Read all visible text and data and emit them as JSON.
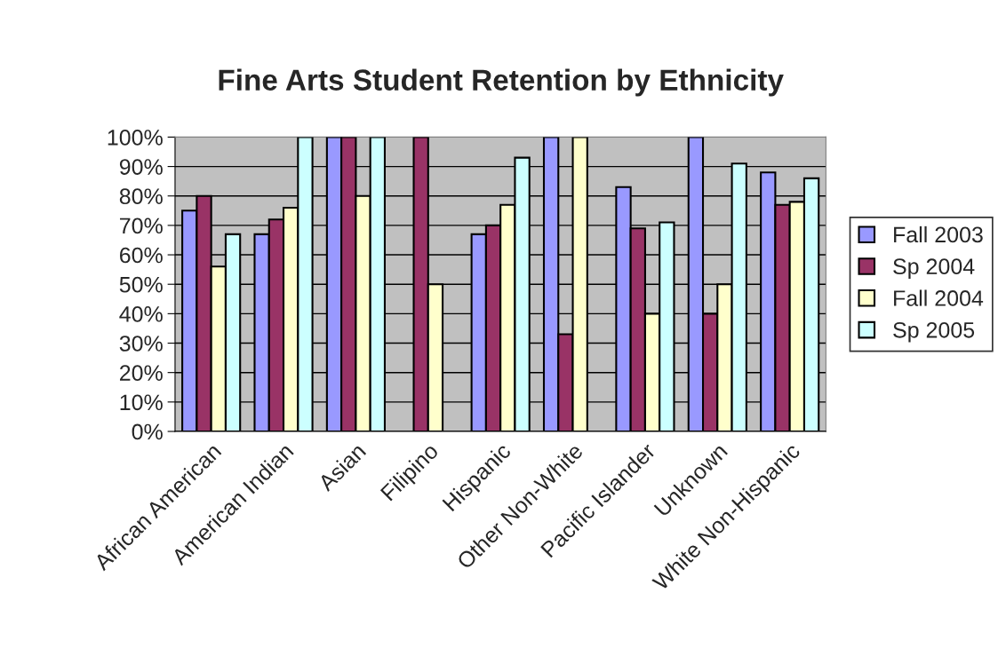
{
  "chart_data": {
    "type": "bar",
    "title": "Fine Arts Student Retention by Ethnicity",
    "categories": [
      "African American",
      "American Indian",
      "Asian",
      "Filipino",
      "Hispanic",
      "Other Non-White",
      "Pacific Islander",
      "Unknown",
      "White Non-Hispanic"
    ],
    "series": [
      {
        "name": "Fall 2003",
        "color": "#9999ff",
        "values": [
          75,
          67,
          100,
          null,
          67,
          100,
          83,
          100,
          88
        ]
      },
      {
        "name": "Sp 2004",
        "color": "#993366",
        "values": [
          80,
          72,
          100,
          100,
          70,
          33,
          69,
          40,
          77
        ]
      },
      {
        "name": "Fall 2004",
        "color": "#ffffcc",
        "values": [
          56,
          76,
          80,
          50,
          77,
          100,
          40,
          50,
          78
        ]
      },
      {
        "name": "Sp 2005",
        "color": "#ccffff",
        "values": [
          67,
          100,
          100,
          null,
          93,
          null,
          71,
          91,
          86
        ]
      }
    ],
    "ylim": [
      0,
      100
    ],
    "yticks": [
      {
        "value": 0,
        "label": "0%"
      },
      {
        "value": 10,
        "label": "10%"
      },
      {
        "value": 20,
        "label": "20%"
      },
      {
        "value": 30,
        "label": "30%"
      },
      {
        "value": 40,
        "label": "40%"
      },
      {
        "value": 50,
        "label": "50%"
      },
      {
        "value": 60,
        "label": "60%"
      },
      {
        "value": 70,
        "label": "70%"
      },
      {
        "value": 80,
        "label": "80%"
      },
      {
        "value": 90,
        "label": "90%"
      },
      {
        "value": 100,
        "label": "100%"
      }
    ],
    "grid": "y",
    "legend": "right"
  }
}
